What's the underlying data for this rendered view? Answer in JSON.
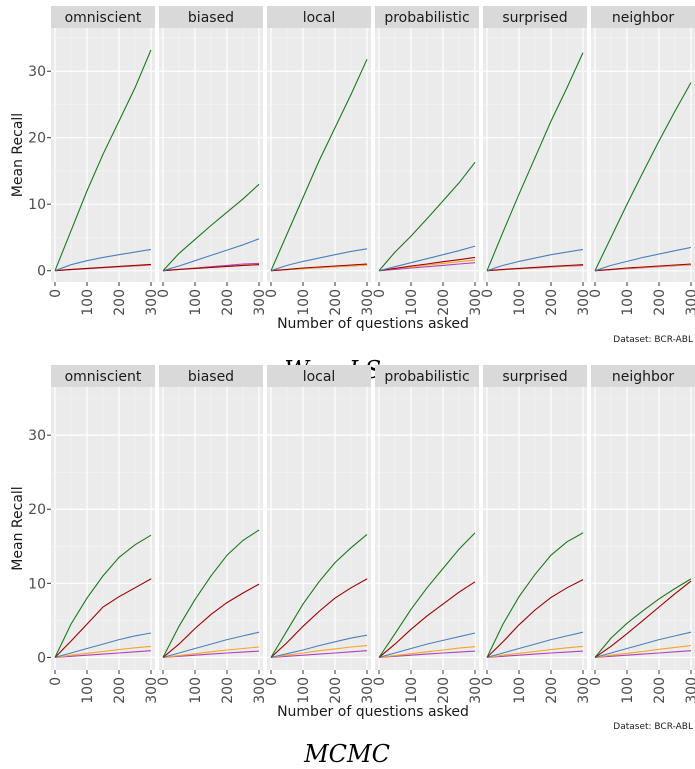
{
  "chart_data": [
    {
      "type": "line",
      "caption": "WaveLSea",
      "facets": [
        "omniscient",
        "biased",
        "local",
        "probabilistic",
        "surprised",
        "neighbor"
      ],
      "xlabel": "Number of questions asked",
      "ylabel": "Mean Recall",
      "xlim": [
        0,
        300
      ],
      "ylim": [
        -1.7,
        36.5
      ],
      "x_ticks": [
        0,
        100,
        200,
        300
      ],
      "y_ticks": [
        0,
        10,
        20,
        30
      ],
      "grid": true,
      "legend": "none",
      "dataset_note": "Dataset:  BCR-ABL",
      "x": [
        0,
        50,
        100,
        150,
        200,
        250,
        300
      ],
      "panels": [
        {
          "facet": "omniscient",
          "series": [
            {
              "color": "#1b7a1b",
              "values": [
                0,
                6.0,
                12.0,
                17.5,
                22.5,
                27.5,
                33.2
              ]
            },
            {
              "color": "#4a7fc0",
              "values": [
                0,
                0.9,
                1.5,
                2.0,
                2.4,
                2.8,
                3.2
              ]
            },
            {
              "color": "#a00000",
              "values": [
                0,
                0.2,
                0.35,
                0.5,
                0.65,
                0.8,
                0.95
              ]
            },
            {
              "color": "#f5a623",
              "values": [
                0,
                0.2,
                0.35,
                0.5,
                0.62,
                0.75,
                0.9
              ]
            },
            {
              "color": "#b040c0",
              "values": [
                0,
                0.15,
                0.3,
                0.45,
                0.58,
                0.7,
                0.85
              ]
            }
          ]
        },
        {
          "facet": "biased",
          "series": [
            {
              "color": "#1b7a1b",
              "values": [
                0,
                2.6,
                4.7,
                6.8,
                8.8,
                10.8,
                13.0
              ]
            },
            {
              "color": "#4a7fc0",
              "values": [
                0,
                0.7,
                1.5,
                2.3,
                3.1,
                3.9,
                4.8
              ]
            },
            {
              "color": "#a00000",
              "values": [
                0,
                0.2,
                0.35,
                0.5,
                0.65,
                0.8,
                0.9
              ]
            },
            {
              "color": "#f5a623",
              "values": [
                0,
                0.2,
                0.35,
                0.5,
                0.65,
                0.8,
                0.95
              ]
            },
            {
              "color": "#b040c0",
              "values": [
                0,
                0.2,
                0.4,
                0.6,
                0.8,
                1.0,
                1.1
              ]
            }
          ]
        },
        {
          "facet": "local",
          "series": [
            {
              "color": "#1b7a1b",
              "values": [
                0,
                5.5,
                11.0,
                16.5,
                21.5,
                26.5,
                31.8
              ]
            },
            {
              "color": "#4a7fc0",
              "values": [
                0,
                0.8,
                1.4,
                1.9,
                2.4,
                2.9,
                3.3
              ]
            },
            {
              "color": "#a00000",
              "values": [
                0,
                0.2,
                0.4,
                0.55,
                0.7,
                0.85,
                1.0
              ]
            },
            {
              "color": "#f5a623",
              "values": [
                0,
                0.15,
                0.3,
                0.45,
                0.6,
                0.7,
                0.85
              ]
            },
            {
              "color": "#b040c0",
              "values": [
                0,
                0.15,
                0.3,
                0.45,
                0.6,
                0.72,
                0.85
              ]
            }
          ]
        },
        {
          "facet": "probabilistic",
          "series": [
            {
              "color": "#1b7a1b",
              "values": [
                0,
                2.8,
                5.2,
                7.8,
                10.5,
                13.2,
                16.3
              ]
            },
            {
              "color": "#4a7fc0",
              "values": [
                0,
                0.6,
                1.2,
                1.8,
                2.4,
                3.0,
                3.7
              ]
            },
            {
              "color": "#a00000",
              "values": [
                0,
                0.35,
                0.7,
                1.0,
                1.35,
                1.65,
                2.0
              ]
            },
            {
              "color": "#f5a623",
              "values": [
                0,
                0.3,
                0.55,
                0.85,
                1.1,
                1.35,
                1.6
              ]
            },
            {
              "color": "#b040c0",
              "values": [
                0,
                0.2,
                0.4,
                0.6,
                0.8,
                1.0,
                1.2
              ]
            }
          ]
        },
        {
          "facet": "surprised",
          "series": [
            {
              "color": "#1b7a1b",
              "values": [
                0,
                5.8,
                11.5,
                17.0,
                22.5,
                27.5,
                32.8
              ]
            },
            {
              "color": "#4a7fc0",
              "values": [
                0,
                0.8,
                1.4,
                1.9,
                2.4,
                2.8,
                3.2
              ]
            },
            {
              "color": "#a00000",
              "values": [
                0,
                0.2,
                0.35,
                0.5,
                0.65,
                0.78,
                0.9
              ]
            },
            {
              "color": "#f5a623",
              "values": [
                0,
                0.15,
                0.3,
                0.45,
                0.6,
                0.72,
                0.85
              ]
            },
            {
              "color": "#b040c0",
              "values": [
                0,
                0.15,
                0.3,
                0.42,
                0.55,
                0.68,
                0.8
              ]
            }
          ]
        },
        {
          "facet": "neighbor",
          "series": [
            {
              "color": "#1b7a1b",
              "values": [
                0,
                5.0,
                10.0,
                14.8,
                19.5,
                24.0,
                28.3
              ]
            },
            {
              "color": "#4a7fc0",
              "values": [
                0,
                0.8,
                1.4,
                2.0,
                2.5,
                3.0,
                3.5
              ]
            },
            {
              "color": "#a00000",
              "values": [
                0,
                0.2,
                0.4,
                0.55,
                0.7,
                0.85,
                1.0
              ]
            },
            {
              "color": "#f5a623",
              "values": [
                0,
                0.2,
                0.35,
                0.5,
                0.65,
                0.8,
                0.95
              ]
            },
            {
              "color": "#b040c0",
              "values": [
                0,
                0.15,
                0.3,
                0.45,
                0.6,
                0.75,
                0.9
              ]
            }
          ]
        }
      ]
    },
    {
      "type": "line",
      "caption": "MCMC",
      "facets": [
        "omniscient",
        "biased",
        "local",
        "probabilistic",
        "surprised",
        "neighbor"
      ],
      "xlabel": "Number of questions asked",
      "ylabel": "Mean Recall",
      "xlim": [
        0,
        300
      ],
      "ylim": [
        -1.7,
        36.5
      ],
      "x_ticks": [
        0,
        100,
        200,
        300
      ],
      "y_ticks": [
        0,
        10,
        20,
        30
      ],
      "grid": true,
      "legend": "none",
      "dataset_note": "Dataset:  BCR-ABL",
      "x": [
        0,
        50,
        100,
        150,
        200,
        250,
        300
      ],
      "panels": [
        {
          "facet": "omniscient",
          "series": [
            {
              "color": "#1b7a1b",
              "values": [
                0,
                4.5,
                8.0,
                11.0,
                13.5,
                15.2,
                16.5
              ]
            },
            {
              "color": "#a00000",
              "values": [
                0,
                2.2,
                4.5,
                6.8,
                8.2,
                9.4,
                10.6
              ]
            },
            {
              "color": "#4a7fc0",
              "values": [
                0,
                0.6,
                1.2,
                1.8,
                2.4,
                2.9,
                3.3
              ]
            },
            {
              "color": "#f5a623",
              "values": [
                0,
                0.3,
                0.55,
                0.8,
                1.05,
                1.3,
                1.5
              ]
            },
            {
              "color": "#b040c0",
              "values": [
                0,
                0.15,
                0.3,
                0.45,
                0.6,
                0.75,
                0.9
              ]
            }
          ]
        },
        {
          "facet": "biased",
          "series": [
            {
              "color": "#1b7a1b",
              "values": [
                0,
                4.2,
                7.8,
                11.0,
                13.8,
                15.8,
                17.2
              ]
            },
            {
              "color": "#a00000",
              "values": [
                0,
                1.8,
                3.9,
                5.8,
                7.4,
                8.7,
                9.9
              ]
            },
            {
              "color": "#4a7fc0",
              "values": [
                0,
                0.6,
                1.2,
                1.8,
                2.4,
                2.9,
                3.4
              ]
            },
            {
              "color": "#f5a623",
              "values": [
                0,
                0.25,
                0.5,
                0.75,
                1.0,
                1.2,
                1.4
              ]
            },
            {
              "color": "#b040c0",
              "values": [
                0,
                0.15,
                0.3,
                0.45,
                0.6,
                0.72,
                0.85
              ]
            }
          ]
        },
        {
          "facet": "local",
          "series": [
            {
              "color": "#1b7a1b",
              "values": [
                0,
                3.6,
                7.2,
                10.2,
                12.8,
                14.8,
                16.6
              ]
            },
            {
              "color": "#a00000",
              "values": [
                0,
                2.0,
                4.2,
                6.2,
                8.0,
                9.4,
                10.6
              ]
            },
            {
              "color": "#4a7fc0",
              "values": [
                0,
                0.5,
                1.0,
                1.6,
                2.1,
                2.6,
                3.0
              ]
            },
            {
              "color": "#f5a623",
              "values": [
                0,
                0.3,
                0.6,
                0.9,
                1.15,
                1.4,
                1.6
              ]
            },
            {
              "color": "#b040c0",
              "values": [
                0,
                0.15,
                0.3,
                0.45,
                0.6,
                0.75,
                0.9
              ]
            }
          ]
        },
        {
          "facet": "probabilistic",
          "series": [
            {
              "color": "#1b7a1b",
              "values": [
                0,
                3.2,
                6.5,
                9.4,
                12.0,
                14.6,
                16.8
              ]
            },
            {
              "color": "#a00000",
              "values": [
                0,
                1.8,
                3.8,
                5.6,
                7.2,
                8.8,
                10.2
              ]
            },
            {
              "color": "#4a7fc0",
              "values": [
                0,
                0.6,
                1.2,
                1.8,
                2.3,
                2.8,
                3.3
              ]
            },
            {
              "color": "#f5a623",
              "values": [
                0,
                0.25,
                0.5,
                0.75,
                1.0,
                1.25,
                1.45
              ]
            },
            {
              "color": "#b040c0",
              "values": [
                0,
                0.15,
                0.3,
                0.45,
                0.6,
                0.72,
                0.85
              ]
            }
          ]
        },
        {
          "facet": "surprised",
          "series": [
            {
              "color": "#1b7a1b",
              "values": [
                0,
                4.5,
                8.2,
                11.2,
                13.8,
                15.6,
                16.8
              ]
            },
            {
              "color": "#a00000",
              "values": [
                0,
                2.1,
                4.4,
                6.4,
                8.1,
                9.4,
                10.5
              ]
            },
            {
              "color": "#4a7fc0",
              "values": [
                0,
                0.6,
                1.2,
                1.8,
                2.4,
                2.9,
                3.4
              ]
            },
            {
              "color": "#f5a623",
              "values": [
                0,
                0.3,
                0.55,
                0.8,
                1.05,
                1.3,
                1.5
              ]
            },
            {
              "color": "#b040c0",
              "values": [
                0,
                0.15,
                0.3,
                0.45,
                0.6,
                0.72,
                0.85
              ]
            }
          ]
        },
        {
          "facet": "neighbor",
          "series": [
            {
              "color": "#1b7a1b",
              "values": [
                0,
                2.6,
                4.6,
                6.3,
                7.9,
                9.3,
                10.6
              ]
            },
            {
              "color": "#a00000",
              "values": [
                0,
                1.5,
                3.2,
                5.0,
                6.8,
                8.6,
                10.3
              ]
            },
            {
              "color": "#4a7fc0",
              "values": [
                0,
                0.6,
                1.2,
                1.8,
                2.4,
                2.9,
                3.4
              ]
            },
            {
              "color": "#f5a623",
              "values": [
                0,
                0.3,
                0.55,
                0.8,
                1.1,
                1.35,
                1.6
              ]
            },
            {
              "color": "#b040c0",
              "values": [
                0,
                0.15,
                0.3,
                0.45,
                0.6,
                0.75,
                0.9
              ]
            }
          ]
        }
      ]
    }
  ]
}
